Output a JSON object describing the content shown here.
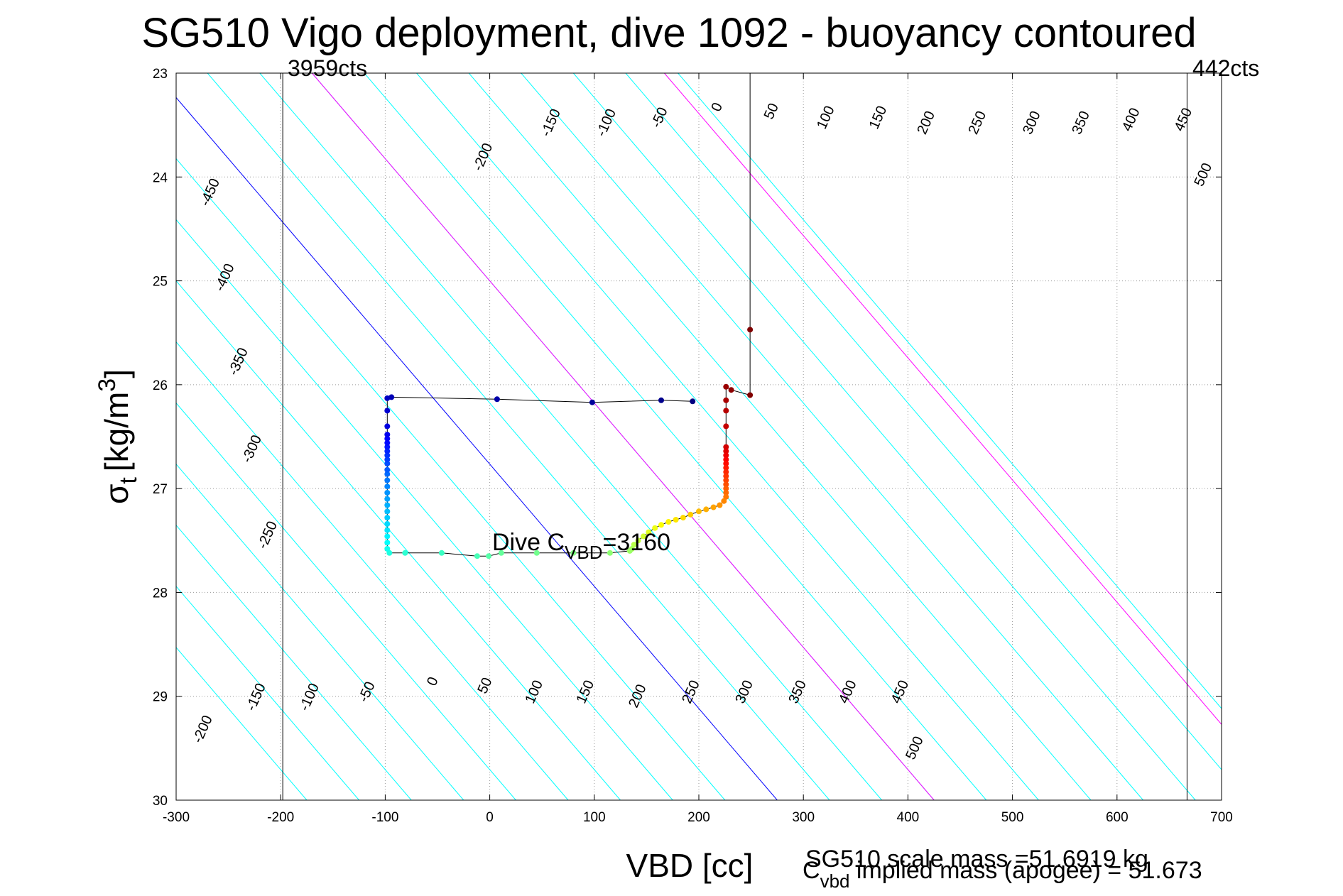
{
  "chart_data": {
    "type": "scatter",
    "title": "SG510 Vigo deployment, dive 1092 - buoyancy contoured",
    "xlabel": "VBD [cc]",
    "ylabel_main": "σ",
    "ylabel_sub": "t",
    "ylabel_unit": "[kg/m",
    "ylabel_sup": "3",
    "ylabel_close": "]",
    "xlim": [
      -300,
      700
    ],
    "ylim": [
      23,
      30
    ],
    "y_reversed": true,
    "grid": true,
    "x_ticks": [
      "-300",
      "-200",
      "-100",
      "0",
      "100",
      "200",
      "300",
      "400",
      "500",
      "600",
      "700"
    ],
    "y_ticks": [
      "23",
      "24",
      "25",
      "26",
      "27",
      "28",
      "29",
      "30"
    ],
    "vbd_limits": [
      {
        "x": -198,
        "label": "3959cts"
      },
      {
        "x": 667,
        "label": "442cts"
      }
    ],
    "buoyancy_contours": {
      "levels": [
        -450,
        -400,
        -350,
        -300,
        -250,
        -200,
        -150,
        -100,
        -50,
        0,
        50,
        100,
        150,
        200,
        250,
        300,
        350,
        400,
        450,
        500
      ],
      "x_at_sigma23": [
        -770,
        -720,
        -670,
        -620,
        -570,
        -520,
        -470,
        -420,
        -370,
        -320,
        -270,
        -220,
        -170,
        -120,
        -70,
        -20,
        30,
        80,
        130,
        180
      ],
      "x_per_sigma": 85,
      "zero_color": "#0000ff",
      "highlight_color": "#ff00ff",
      "highlight_x_at_sigma23": [
        -170,
        167
      ],
      "default_color": "#00ffff"
    },
    "contour_labels_top": [
      {
        "text": "-450",
        "x": -267,
        "y": 24.15
      },
      {
        "text": "-400",
        "x": -253,
        "y": 24.97
      },
      {
        "text": "-350",
        "x": -240,
        "y": 25.78
      },
      {
        "text": "-300",
        "x": -227,
        "y": 26.62
      },
      {
        "text": "-250",
        "x": -212,
        "y": 27.45
      },
      {
        "text": "-200",
        "x": -6,
        "y": 23.81
      },
      {
        "text": "-150",
        "x": 59,
        "y": 23.48
      },
      {
        "text": "-100",
        "x": 112,
        "y": 23.48
      },
      {
        "text": "-50",
        "x": 163,
        "y": 23.43
      },
      {
        "text": "0",
        "x": 218,
        "y": 23.33
      },
      {
        "text": "50",
        "x": 270,
        "y": 23.37
      },
      {
        "text": "100",
        "x": 322,
        "y": 23.43
      },
      {
        "text": "150",
        "x": 372,
        "y": 23.43
      },
      {
        "text": "200",
        "x": 418,
        "y": 23.48
      },
      {
        "text": "250",
        "x": 467,
        "y": 23.48
      },
      {
        "text": "300",
        "x": 519,
        "y": 23.48
      },
      {
        "text": "350",
        "x": 566,
        "y": 23.48
      },
      {
        "text": "400",
        "x": 614,
        "y": 23.45
      },
      {
        "text": "450",
        "x": 664,
        "y": 23.45
      },
      {
        "text": "500",
        "x": 683,
        "y": 23.98
      }
    ],
    "contour_labels_bottom": [
      {
        "text": "-200",
        "x": -274,
        "y": 29.32
      },
      {
        "text": "-150",
        "x": -223,
        "y": 29.01
      },
      {
        "text": "-100",
        "x": -172,
        "y": 29.01
      },
      {
        "text": "-50",
        "x": -117,
        "y": 28.96
      },
      {
        "text": "0",
        "x": -54,
        "y": 28.86
      },
      {
        "text": "50",
        "x": -4,
        "y": 28.9
      },
      {
        "text": "100",
        "x": 43,
        "y": 28.96
      },
      {
        "text": "150",
        "x": 92,
        "y": 28.96
      },
      {
        "text": "200",
        "x": 142,
        "y": 29.0
      },
      {
        "text": "250",
        "x": 193,
        "y": 28.96
      },
      {
        "text": "300",
        "x": 244,
        "y": 28.96
      },
      {
        "text": "350",
        "x": 295,
        "y": 28.96
      },
      {
        "text": "400",
        "x": 343,
        "y": 28.96
      },
      {
        "text": "450",
        "x": 393,
        "y": 28.96
      },
      {
        "text": "500",
        "x": 407,
        "y": 29.5
      }
    ],
    "series": [
      {
        "points": [
          [
            249,
            26.1
          ],
          [
            231,
            26.05
          ],
          [
            226,
            26.02
          ],
          [
            226,
            26.15
          ],
          [
            226,
            26.25
          ],
          [
            226,
            26.4
          ],
          [
            226,
            26.6
          ],
          [
            226,
            26.64
          ],
          [
            226,
            26.68
          ],
          [
            226,
            26.72
          ],
          [
            226,
            26.76
          ],
          [
            226,
            26.8
          ],
          [
            226,
            26.84
          ],
          [
            226,
            26.88
          ],
          [
            226,
            26.92
          ],
          [
            226,
            26.96
          ],
          [
            226,
            27.0
          ],
          [
            226,
            27.04
          ],
          [
            226,
            27.08
          ],
          [
            224,
            27.12
          ],
          [
            220,
            27.16
          ],
          [
            214,
            27.18
          ],
          [
            207,
            27.2
          ],
          [
            200,
            27.22
          ],
          [
            192,
            27.25
          ],
          [
            185,
            27.28
          ],
          [
            178,
            27.3
          ],
          [
            171,
            27.32
          ],
          [
            164,
            27.35
          ],
          [
            158,
            27.38
          ],
          [
            152,
            27.42
          ],
          [
            147,
            27.46
          ],
          [
            142,
            27.5
          ],
          [
            138,
            27.54
          ],
          [
            136,
            27.58
          ],
          [
            134,
            27.6
          ],
          [
            115,
            27.62
          ],
          [
            80,
            27.62
          ],
          [
            45,
            27.62
          ],
          [
            11,
            27.62
          ],
          [
            -1,
            27.65
          ],
          [
            -12,
            27.65
          ],
          [
            -46,
            27.62
          ],
          [
            -81,
            27.62
          ],
          [
            -96,
            27.62
          ],
          [
            -98,
            27.58
          ],
          [
            -98,
            27.52
          ],
          [
            -98,
            27.46
          ],
          [
            -98,
            27.4
          ],
          [
            -98,
            27.34
          ],
          [
            -98,
            27.28
          ],
          [
            -98,
            27.22
          ],
          [
            -98,
            27.16
          ],
          [
            -98,
            27.1
          ],
          [
            -98,
            27.04
          ],
          [
            -98,
            26.98
          ],
          [
            -98,
            26.92
          ],
          [
            -98,
            26.86
          ],
          [
            -98,
            26.82
          ],
          [
            -98,
            26.76
          ],
          [
            -98,
            26.72
          ],
          [
            -98,
            26.68
          ],
          [
            -98,
            26.64
          ],
          [
            -98,
            26.6
          ],
          [
            -98,
            26.56
          ],
          [
            -98,
            26.52
          ],
          [
            -98,
            26.48
          ],
          [
            -98,
            26.4
          ],
          [
            -98,
            26.25
          ],
          [
            -98,
            26.13
          ],
          [
            -94,
            26.12
          ],
          [
            7,
            26.14
          ],
          [
            98,
            26.17
          ],
          [
            164,
            26.15
          ],
          [
            194,
            26.16
          ]
        ]
      }
    ],
    "apogee_track": [
      [
        249,
        23.0
      ],
      [
        249,
        26.1
      ]
    ],
    "apogee_points": [
      [
        249,
        25.47
      ]
    ],
    "annotation_dive_cvbd_prefix": "Dive C",
    "annotation_dive_cvbd_sub": "VBD",
    "annotation_dive_cvbd_suffix": "=3160",
    "annotation_x": 0,
    "annotation_y": 27.5,
    "footer_scale_mass": "SG510 scale mass =51.6919 kg",
    "footer_implied_prefix": "C",
    "footer_implied_sub": "vbd",
    "footer_implied_suffix": " implied mass (apogee) = 51.673"
  }
}
